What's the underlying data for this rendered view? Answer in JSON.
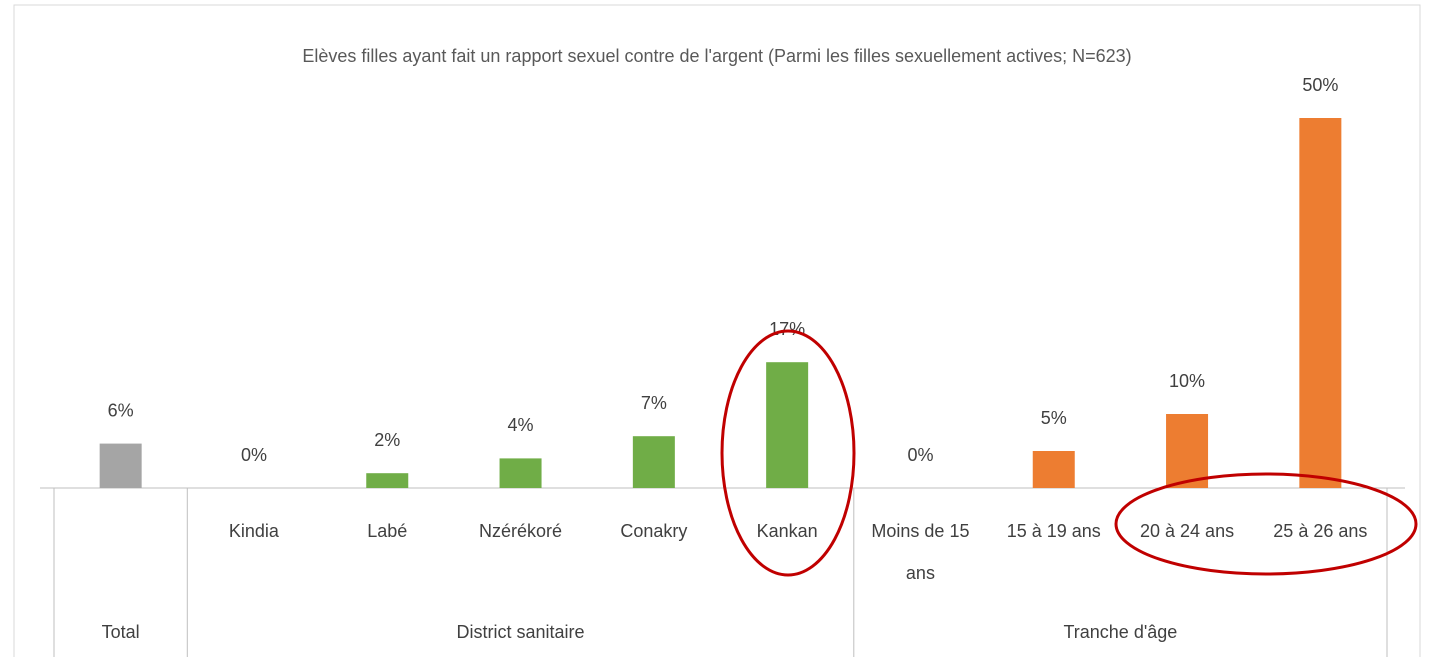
{
  "chart_data": {
    "type": "bar",
    "title": "Elèves filles ayant fait un rapport sexuel contre de l'argent (Parmi les filles sexuellement actives; N=623)",
    "groups": [
      {
        "name": "Total",
        "color": "#a5a5a5",
        "categories": [
          null
        ],
        "values": [
          6
        ],
        "value_labels": [
          "6%"
        ]
      },
      {
        "name": "District sanitaire",
        "color": "#70ad47",
        "categories": [
          "Kindia",
          "Labé",
          "Nzérékoré",
          "Conakry",
          "Kankan"
        ],
        "values": [
          0,
          2,
          4,
          7,
          17
        ],
        "value_labels": [
          "0%",
          "2%",
          "4%",
          "7%",
          "17%"
        ]
      },
      {
        "name": "Tranche d'âge",
        "color": "#ed7d31",
        "categories": [
          "Moins de 15 ans",
          "15 à 19 ans",
          "20 à 24 ans",
          "25 à 26 ans"
        ],
        "values": [
          0,
          5,
          10,
          50
        ],
        "value_labels": [
          "0%",
          "5%",
          "10%",
          "50%"
        ]
      }
    ]
  }
}
